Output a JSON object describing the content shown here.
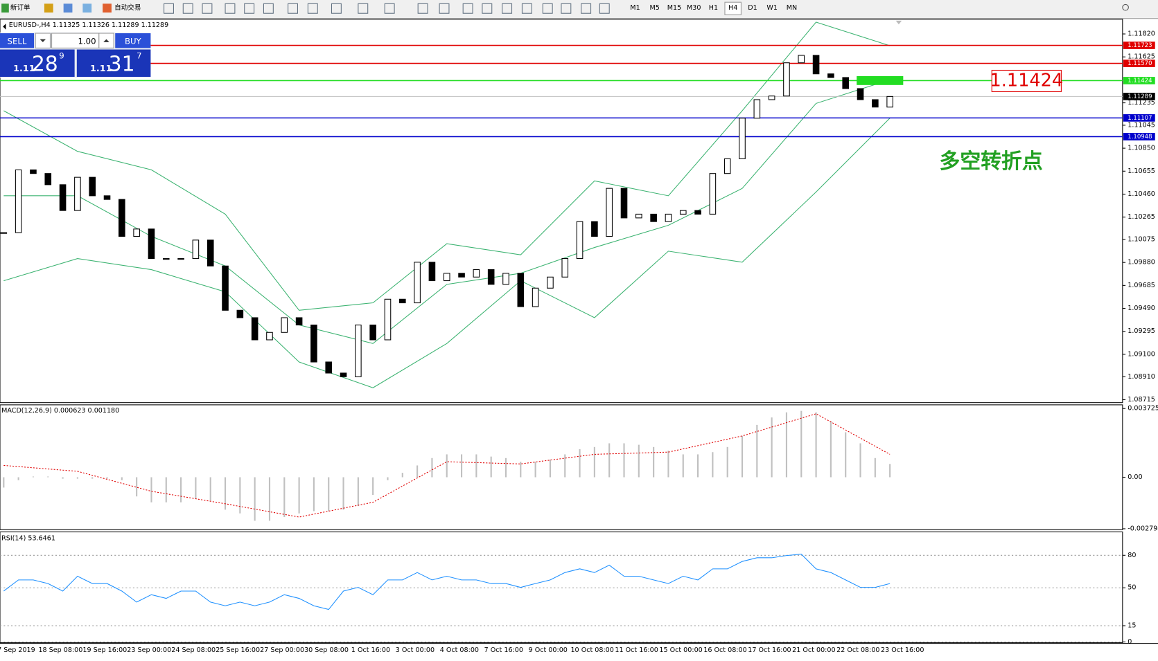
{
  "toolbar": {
    "buttons": [
      "新订单",
      "自动交易"
    ],
    "timeframes": [
      "M1",
      "M5",
      "M15",
      "M30",
      "H1",
      "H4",
      "D1",
      "W1",
      "MN"
    ],
    "active_timeframe": "H4"
  },
  "trade_panel": {
    "sell": "SELL",
    "buy": "BUY",
    "lot": "1.00",
    "sell_price": {
      "big_figure": "1.11",
      "pips": "28",
      "point": "9"
    },
    "buy_price": {
      "big_figure": "1.11",
      "pips": "31",
      "point": "7"
    }
  },
  "chart_data": [
    {
      "type": "candlestick",
      "title": "EURUSD-,H4  1.11325 1.11326 1.11289 1.11289",
      "close": [
        1.10133,
        1.10666,
        1.10635,
        1.1054,
        1.10321,
        1.10603,
        1.10446,
        1.10415,
        1.10101,
        1.10164,
        1.09913,
        1.09913,
        1.09913,
        1.1007,
        1.0985,
        1.09474,
        1.09411,
        1.09223,
        1.09286,
        1.09411,
        1.09349,
        1.09035,
        1.08941,
        1.0891,
        1.09349,
        1.09223,
        1.09568,
        1.09537,
        1.09882,
        1.09725,
        1.09788,
        1.09756,
        1.09819,
        1.09694,
        1.09788,
        1.09505,
        1.09662,
        1.09756,
        1.09913,
        1.10227,
        1.10101,
        1.10509,
        1.10258,
        1.1029,
        1.10227,
        1.1029,
        1.10321,
        1.1029,
        1.10635,
        1.1076,
        1.11105,
        1.11262,
        1.11293,
        1.11575,
        1.11638,
        1.11481,
        1.1145,
        1.11356,
        1.11262,
        1.11199,
        1.11289
      ],
      "bands": {
        "color": "#3cb371",
        "upper": [
          1.11168,
          1.10823,
          1.10666,
          1.1029,
          1.09474,
          1.09537,
          1.10039,
          1.09945,
          1.10572,
          1.10446,
          1.11168,
          1.1192,
          1.1172
        ],
        "middle": [
          1.10446,
          1.10446,
          1.10101,
          1.0985,
          1.09349,
          1.09192,
          1.09694,
          1.09788,
          1.10007,
          1.10195,
          1.10509,
          1.1123,
          1.11431
        ],
        "lower": [
          1.09725,
          1.09913,
          1.09819,
          1.09631,
          1.09035,
          1.08816,
          1.09192,
          1.09725,
          1.09411,
          1.09976,
          1.09882,
          1.10478,
          1.11105
        ]
      },
      "levels": [
        {
          "price": 1.11723,
          "label": "1.11723",
          "color": "#e00000"
        },
        {
          "price": 1.1157,
          "label": "1.11570",
          "color": "#e00000"
        },
        {
          "price": 1.11424,
          "label": "1.11424",
          "color": "#22dd22"
        },
        {
          "price": 1.11107,
          "label": "1.11107",
          "color": "#0000cc"
        },
        {
          "price": 1.10948,
          "label": "1.10948",
          "color": "#0000cc"
        }
      ],
      "current_price": {
        "price": 1.11289,
        "label": "1.11289"
      },
      "annotation": "1.11424",
      "note": "多空转折点",
      "ylim": [
        1.0869,
        1.11945
      ],
      "yticks": [
        {
          "value": 1.1182,
          "label": "1.11820"
        },
        {
          "value": 1.11625,
          "label": "1.11625"
        },
        {
          "value": 1.11235,
          "label": "1.11235"
        },
        {
          "value": 1.11045,
          "label": "1.11045"
        },
        {
          "value": 1.1085,
          "label": "1.10850"
        },
        {
          "value": 1.10655,
          "label": "1.10655"
        },
        {
          "value": 1.1046,
          "label": "1.10460"
        },
        {
          "value": 1.10265,
          "label": "1.10265"
        },
        {
          "value": 1.10075,
          "label": "1.10075"
        },
        {
          "value": 1.0988,
          "label": "1.09880"
        },
        {
          "value": 1.09685,
          "label": "1.09685"
        },
        {
          "value": 1.0949,
          "label": "1.09490"
        },
        {
          "value": 1.09295,
          "label": "1.09295"
        },
        {
          "value": 1.091,
          "label": "1.09100"
        },
        {
          "value": 1.0891,
          "label": "1.08910"
        },
        {
          "value": 1.08715,
          "label": "1.08715"
        }
      ]
    },
    {
      "type": "macd",
      "title": "MACD(12,26,9) 0.000623 0.001180",
      "histogram": [
        -0.00056,
        -0.00016,
        4e-05,
        4e-05,
        -8e-05,
        -8e-05,
        -8e-05,
        -8e-05,
        -0.00016,
        -0.00104,
        -0.00136,
        -0.00136,
        -0.00136,
        -0.00116,
        -0.00128,
        -0.00176,
        -0.00196,
        -0.00236,
        -0.00236,
        -0.00216,
        -0.00196,
        -0.00184,
        -0.00184,
        -0.00176,
        -0.00156,
        -0.00096,
        -0.00016,
        0.00024,
        0.00064,
        0.00104,
        0.00124,
        0.00124,
        0.00124,
        0.00112,
        0.00104,
        0.00084,
        0.00084,
        0.00096,
        0.00124,
        0.00152,
        0.00164,
        0.00184,
        0.00184,
        0.00176,
        0.00164,
        0.00144,
        0.00124,
        0.00124,
        0.00136,
        0.00164,
        0.00224,
        0.00284,
        0.00324,
        0.00352,
        0.0036,
        0.00352,
        0.00304,
        0.00244,
        0.00184,
        0.00104,
        0.00072
      ],
      "signal": [
        0.00064,
        0.00032,
        -0.00076,
        -0.00144,
        -0.00216,
        -0.00136,
        0.00084,
        0.00072,
        0.00124,
        0.00136,
        0.00224,
        0.00344,
        0.00124
      ],
      "hist_color": "#c0c0c0",
      "signal_color": "#e00000",
      "ylim": [
        -0.002844,
        0.003925
      ],
      "yticks": [
        0.003725,
        {
          "value": 0,
          "label": "0.00"
        },
        -0.002794
      ]
    },
    {
      "type": "line",
      "title": "RSI(14) 53.6461",
      "color": "#1e90ff",
      "values": [
        47.0,
        57.3,
        57.3,
        53.9,
        47.0,
        60.7,
        53.9,
        53.9,
        47.0,
        36.8,
        43.6,
        40.2,
        47.0,
        47.0,
        36.8,
        33.4,
        36.8,
        33.4,
        36.8,
        43.6,
        40.2,
        33.4,
        30.0,
        47.0,
        50.4,
        43.6,
        57.3,
        57.3,
        64.1,
        57.3,
        60.7,
        57.3,
        57.3,
        53.9,
        53.9,
        50.4,
        53.9,
        57.3,
        64.1,
        67.5,
        64.1,
        70.9,
        60.7,
        60.7,
        57.3,
        53.9,
        60.7,
        57.3,
        67.5,
        67.5,
        74.3,
        77.7,
        77.7,
        79.8,
        81.1,
        67.5,
        64.1,
        57.3,
        50.4,
        50.4,
        53.9
      ],
      "ylim": [
        -0.7,
        101.6
      ],
      "yticks": [
        80,
        50,
        15,
        0
      ],
      "grid": true
    }
  ],
  "time_axis": {
    "labels": [
      "7 Sep 2019",
      "18 Sep 08:00",
      "19 Sep 16:00",
      "23 Sep 00:00",
      "24 Sep 08:00",
      "25 Sep 16:00",
      "27 Sep 00:00",
      "30 Sep 08:00",
      "1 Oct 16:00",
      "3 Oct 00:00",
      "4 Oct 08:00",
      "7 Oct 16:00",
      "9 Oct 00:00",
      "10 Oct 08:00",
      "11 Oct 16:00",
      "15 Oct 00:00",
      "16 Oct 08:00",
      "17 Oct 16:00",
      "21 Oct 00:00",
      "22 Oct 08:00",
      "23 Oct 16:00"
    ]
  }
}
